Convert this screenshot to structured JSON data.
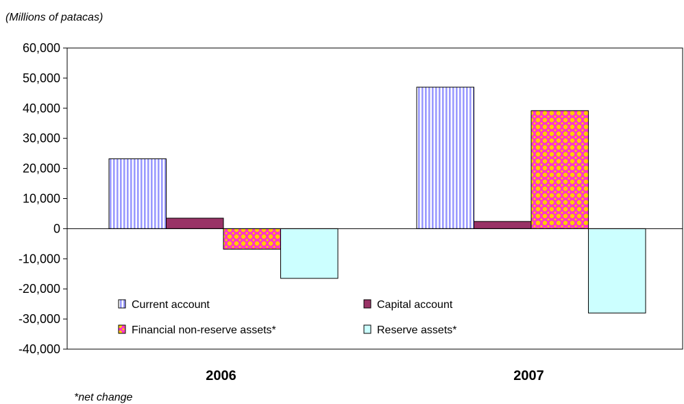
{
  "chart_data": {
    "type": "bar",
    "unit_label": "(Millions of patacas)",
    "footnote": "*net change",
    "categories": [
      "2006",
      "2007"
    ],
    "series": [
      {
        "name": "Current account",
        "values": [
          23200,
          47000
        ],
        "color": "#9999ff",
        "pattern": "vertical-stripes"
      },
      {
        "name": "Capital account",
        "values": [
          3500,
          2400
        ],
        "color": "#993366",
        "pattern": "solid"
      },
      {
        "name": "Financial non-reserve assets*",
        "values": [
          -6800,
          39200
        ],
        "color": "#ff33cc",
        "pattern": "dots-yellow"
      },
      {
        "name": "Reserve assets*",
        "values": [
          -16500,
          -28000
        ],
        "color": "#ccffff",
        "pattern": "solid"
      }
    ],
    "y_ticks": [
      "60,000",
      "50,000",
      "40,000",
      "30,000",
      "20,000",
      "10,000",
      "0",
      "-10,000",
      "-20,000",
      "-30,000",
      "-40,000"
    ],
    "ylim": [
      -40000,
      60000
    ],
    "grid": false,
    "legend_position": "lower-left inside plot"
  }
}
